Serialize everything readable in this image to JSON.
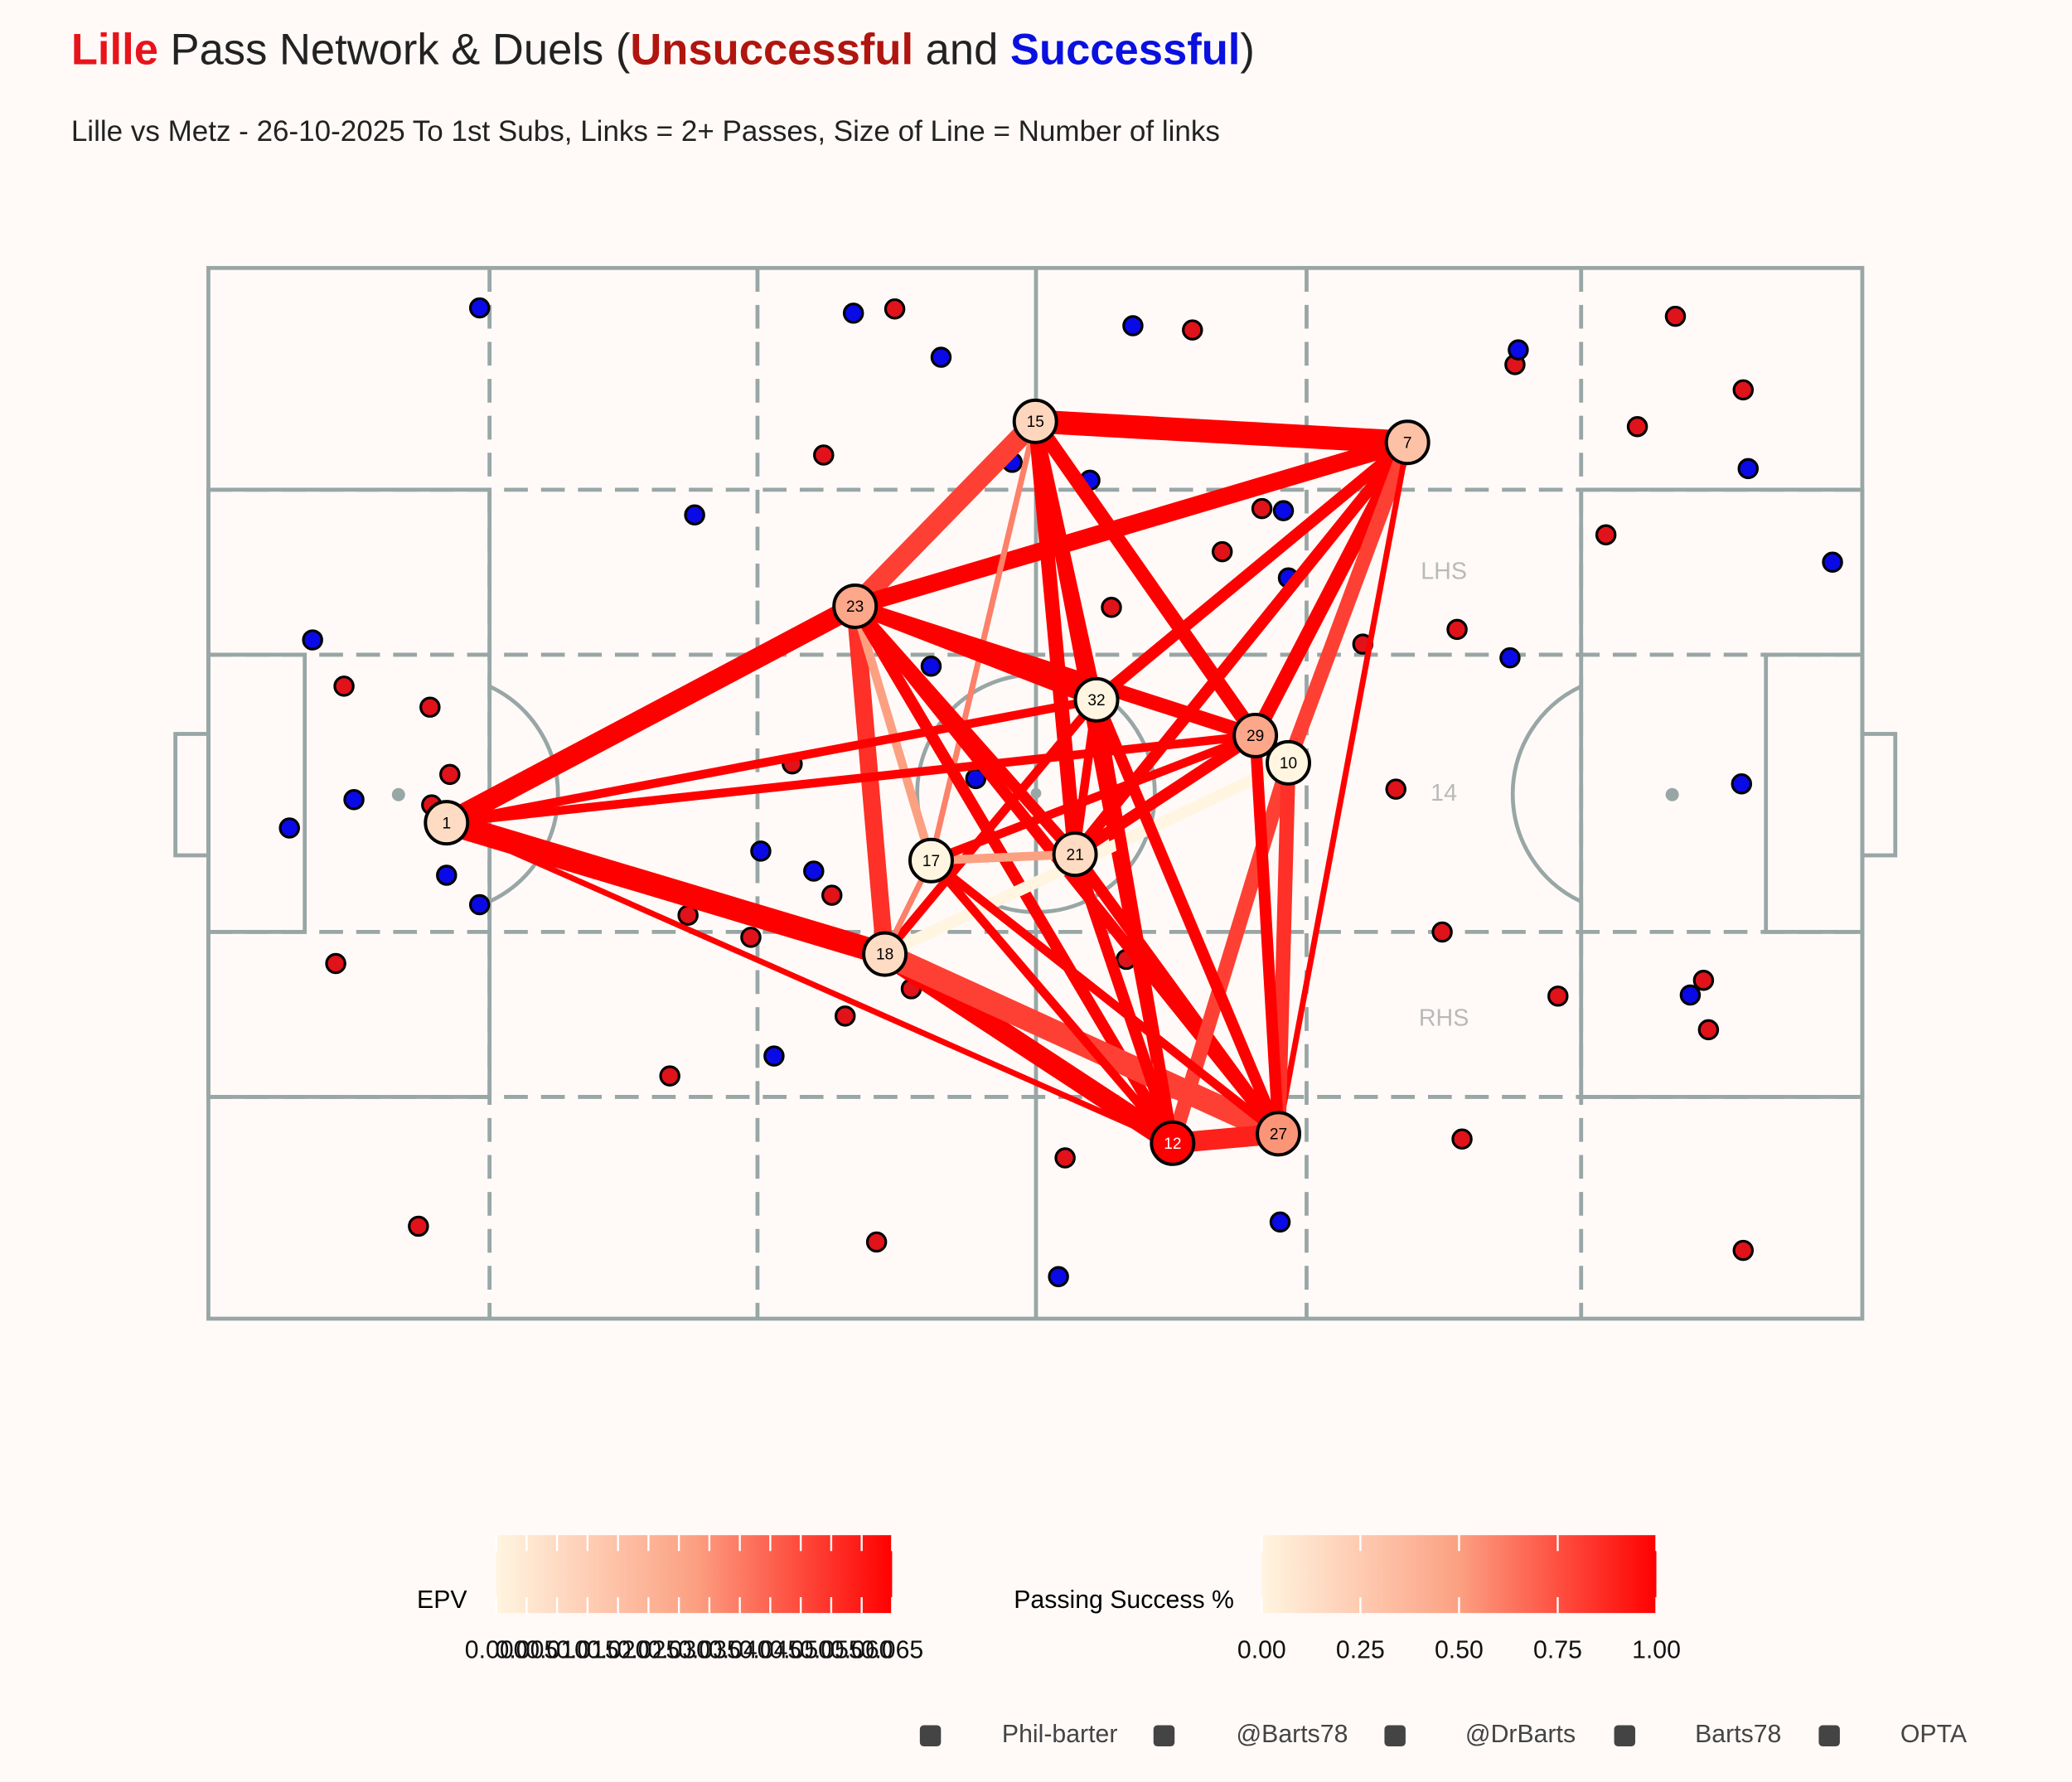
{
  "chart_data": {
    "type": "pass-network",
    "title_parts": [
      {
        "text": "Lille",
        "color": "#e8141b",
        "bold": true
      },
      {
        "text": " Pass Network & Duels (",
        "color": "#222222",
        "bold": false
      },
      {
        "text": "Unsuccessful",
        "color": "#b0150f",
        "bold": true
      },
      {
        "text": " and ",
        "color": "#222222",
        "bold": false
      },
      {
        "text": "Successful",
        "color": "#0a10e0",
        "bold": true
      },
      {
        "text": ")",
        "color": "#222222",
        "bold": false
      }
    ],
    "subtitle": "Lille vs Metz - 26-10-2025 To 1st Subs, Links = 2+ Passes, Size of Line = Number of links",
    "xlim": [
      0,
      100
    ],
    "ylim": [
      0,
      100
    ],
    "zone_labels": [
      {
        "text": "LHS",
        "x": 74.7,
        "y": 71.0
      },
      {
        "text": "RHS",
        "x": 74.7,
        "y": 28.5
      },
      {
        "text": "14",
        "x": 74.7,
        "y": 49.9
      }
    ],
    "duels_unsuccessful": {
      "color": "#e0121a",
      "x": [
        41.5,
        59.5,
        88.7,
        92.8,
        79.0,
        86.4,
        37.2,
        63.7,
        61.3,
        84.5,
        54.6,
        75.5,
        69.8,
        8.2,
        13.4,
        14.6,
        13.5,
        35.3,
        37.7,
        29.0,
        32.8,
        42.5,
        38.5,
        71.8,
        74.6,
        81.6,
        90.4,
        90.7,
        7.7,
        27.9,
        51.8,
        75.8,
        40.4,
        12.7,
        92.8,
        55.5
      ],
      "y": [
        96.1,
        94.1,
        95.4,
        88.4,
        90.8,
        84.9,
        82.2,
        77.1,
        73.0,
        74.6,
        67.7,
        65.6,
        64.2,
        60.2,
        58.2,
        51.8,
        48.9,
        52.8,
        40.3,
        38.4,
        36.3,
        31.4,
        28.8,
        50.4,
        36.8,
        30.7,
        32.2,
        27.5,
        33.8,
        23.1,
        15.3,
        17.1,
        7.3,
        8.8,
        6.5,
        34.2
      ]
    },
    "duels_successful": {
      "color": "#0a0ae6",
      "x": [
        16.4,
        39.0,
        44.3,
        55.9,
        79.2,
        93.1,
        29.4,
        65.0,
        65.3,
        53.3,
        78.7,
        98.2,
        6.3,
        8.8,
        4.9,
        14.4,
        16.4,
        33.4,
        36.6,
        46.4,
        34.2,
        43.7,
        92.7,
        89.6,
        64.8,
        51.4,
        48.6
      ],
      "y": [
        96.2,
        95.7,
        91.5,
        94.5,
        92.2,
        80.9,
        76.5,
        76.9,
        70.5,
        79.8,
        62.9,
        72.0,
        64.6,
        49.4,
        46.7,
        42.2,
        39.4,
        44.5,
        42.6,
        51.4,
        25.0,
        62.1,
        50.9,
        30.8,
        9.2,
        4.0,
        81.5
      ]
    },
    "links": [
      {
        "source": "15",
        "target": "7",
        "passes": 8,
        "success": 1.0
      },
      {
        "source": "15",
        "target": "23",
        "passes": 7,
        "success": 0.8
      },
      {
        "source": "7",
        "target": "23",
        "passes": 6,
        "success": 1.0
      },
      {
        "source": "7",
        "target": "29",
        "passes": 5,
        "success": 1.0
      },
      {
        "source": "7",
        "target": "32",
        "passes": 4,
        "success": 1.0
      },
      {
        "source": "7",
        "target": "21",
        "passes": 4,
        "success": 1.0
      },
      {
        "source": "7",
        "target": "10",
        "passes": 5,
        "success": 0.8
      },
      {
        "source": "7",
        "target": "27",
        "passes": 2,
        "success": 1.0
      },
      {
        "source": "15",
        "target": "32",
        "passes": 4,
        "success": 1.0
      },
      {
        "source": "15",
        "target": "29",
        "passes": 5,
        "success": 1.0
      },
      {
        "source": "15",
        "target": "17",
        "passes": 2,
        "success": 0.6
      },
      {
        "source": "15",
        "target": "21",
        "passes": 5,
        "success": 1.0
      },
      {
        "source": "15",
        "target": "12",
        "passes": 4,
        "success": 1.0
      },
      {
        "source": "23",
        "target": "1",
        "passes": 7,
        "success": 1.0
      },
      {
        "source": "23",
        "target": "32",
        "passes": 5,
        "success": 1.0
      },
      {
        "source": "23",
        "target": "29",
        "passes": 5,
        "success": 1.0
      },
      {
        "source": "23",
        "target": "18",
        "passes": 6,
        "success": 0.85
      },
      {
        "source": "23",
        "target": "17",
        "passes": 3,
        "success": 0.5
      },
      {
        "source": "23",
        "target": "21",
        "passes": 4,
        "success": 1.0
      },
      {
        "source": "23",
        "target": "27",
        "passes": 4,
        "success": 1.0
      },
      {
        "source": "23",
        "target": "12",
        "passes": 4,
        "success": 1.0
      },
      {
        "source": "1",
        "target": "18",
        "passes": 8,
        "success": 1.0
      },
      {
        "source": "1",
        "target": "29",
        "passes": 3,
        "success": 1.0
      },
      {
        "source": "1",
        "target": "32",
        "passes": 3,
        "success": 1.0
      },
      {
        "source": "1",
        "target": "12",
        "passes": 2,
        "success": 1.0
      },
      {
        "source": "18",
        "target": "12",
        "passes": 7,
        "success": 1.0
      },
      {
        "source": "18",
        "target": "27",
        "passes": 8,
        "success": 0.8
      },
      {
        "source": "18",
        "target": "32",
        "passes": 3,
        "success": 1.0
      },
      {
        "source": "18",
        "target": "17",
        "passes": 2,
        "success": 0.6
      },
      {
        "source": "18",
        "target": "10",
        "passes": 4,
        "success": 0.0
      },
      {
        "source": "21",
        "target": "17",
        "passes": 3,
        "success": 0.5
      },
      {
        "source": "21",
        "target": "29",
        "passes": 4,
        "success": 1.0
      },
      {
        "source": "21",
        "target": "32",
        "passes": 3,
        "success": 1.0
      },
      {
        "source": "21",
        "target": "27",
        "passes": 4,
        "success": 1.0
      },
      {
        "source": "21",
        "target": "12",
        "passes": 4,
        "success": 1.0
      },
      {
        "source": "12",
        "target": "27",
        "passes": 7,
        "success": 0.9
      },
      {
        "source": "12",
        "target": "10",
        "passes": 5,
        "success": 0.8
      },
      {
        "source": "27",
        "target": "10",
        "passes": 5,
        "success": 0.85
      },
      {
        "source": "27",
        "target": "29",
        "passes": 4,
        "success": 1.0
      },
      {
        "source": "12",
        "target": "32",
        "passes": 4,
        "success": 1.0
      },
      {
        "source": "27",
        "target": "32",
        "passes": 4,
        "success": 1.0
      },
      {
        "source": "17",
        "target": "27",
        "passes": 3,
        "success": 1.0
      },
      {
        "source": "17",
        "target": "29",
        "passes": 3,
        "success": 1.0
      },
      {
        "source": "17",
        "target": "12",
        "passes": 3,
        "success": 1.0
      }
    ],
    "nodes": [
      {
        "label": "1",
        "x": 14.4,
        "y": 47.2,
        "epv": 0.01
      },
      {
        "label": "15",
        "x": 50.0,
        "y": 85.4,
        "epv": 0.012
      },
      {
        "label": "7",
        "x": 72.5,
        "y": 83.4,
        "epv": 0.02
      },
      {
        "label": "23",
        "x": 39.1,
        "y": 67.8,
        "epv": 0.03
      },
      {
        "label": "32",
        "x": 53.7,
        "y": 58.9,
        "epv": 0.0
      },
      {
        "label": "29",
        "x": 63.3,
        "y": 55.5,
        "epv": 0.03
      },
      {
        "label": "10",
        "x": 65.3,
        "y": 52.9,
        "epv": 0.0
      },
      {
        "label": "17",
        "x": 43.7,
        "y": 43.6,
        "epv": 0.0
      },
      {
        "label": "21",
        "x": 52.4,
        "y": 44.2,
        "epv": 0.01
      },
      {
        "label": "18",
        "x": 40.9,
        "y": 34.7,
        "epv": 0.01
      },
      {
        "label": "12",
        "x": 58.3,
        "y": 16.7,
        "epv": 0.065
      },
      {
        "label": "27",
        "x": 64.7,
        "y": 17.6,
        "epv": 0.035
      }
    ],
    "epv_legend": {
      "title": "EPV",
      "lim": [
        0,
        0.065
      ],
      "ticks": [
        {
          "value": 0,
          "label": "0.000"
        },
        {
          "value": 0.005,
          "label": "0.005"
        },
        {
          "value": 0.01,
          "label": "0.010"
        },
        {
          "value": 0.015,
          "label": "0.015"
        },
        {
          "value": 0.02,
          "label": "0.020"
        },
        {
          "value": 0.025,
          "label": "0.025"
        },
        {
          "value": 0.03,
          "label": "0.030"
        },
        {
          "value": 0.035,
          "label": "0.035"
        },
        {
          "value": 0.04,
          "label": "0.040"
        },
        {
          "value": 0.045,
          "label": "0.045"
        },
        {
          "value": 0.05,
          "label": "0.050"
        },
        {
          "value": 0.055,
          "label": "0.055"
        },
        {
          "value": 0.06,
          "label": "0.060"
        },
        {
          "value": 0.065,
          "label": "0.065"
        }
      ]
    },
    "success_legend": {
      "title": "Passing Success %",
      "lim": [
        0,
        1
      ],
      "ticks": [
        {
          "value": 0,
          "label": "0.00"
        },
        {
          "value": 0.25,
          "label": "0.25"
        },
        {
          "value": 0.5,
          "label": "0.50"
        },
        {
          "value": 0.75,
          "label": "0.75"
        },
        {
          "value": 1,
          "label": "1.00"
        }
      ]
    },
    "colors": {
      "low": "#fff5e0",
      "mid": "#fca082",
      "high": "#ff0000"
    },
    "footer": [
      "Phil-barter",
      "@Barts78",
      "@DrBarts",
      "Barts78",
      "OPTA"
    ]
  }
}
